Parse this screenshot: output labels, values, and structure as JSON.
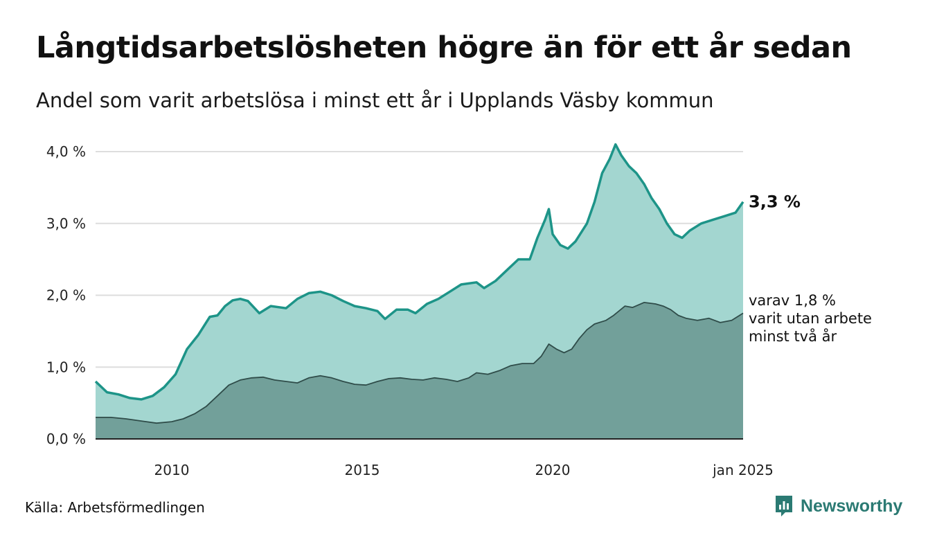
{
  "title": "Långtidsarbetslösheten högre än för ett år sedan",
  "subtitle": "Andel som varit arbetslösa i minst ett år i Upplands Väsby kommun",
  "source": "Källa: Arbetsförmedlingen",
  "brand": {
    "name": "Newsworthy",
    "icon": "newsworthy-logo-icon",
    "color": "#2b7a73"
  },
  "chart_data": {
    "type": "area",
    "x_unit": "year",
    "ylim": [
      0,
      4.0
    ],
    "y_ticks": [
      0.0,
      1.0,
      2.0,
      3.0,
      4.0
    ],
    "y_tick_labels": [
      "0,0 %",
      "1,0 %",
      "2,0 %",
      "3,0 %",
      "4,0 %"
    ],
    "x_ticks": [
      2010,
      2015,
      2020,
      2025.0
    ],
    "x_tick_labels": [
      "2010",
      "2015",
      "2020",
      "jan 2025"
    ],
    "xlim": [
      2008.0,
      2025.0
    ],
    "grid": "horizontal",
    "end_label": "3,3 %",
    "note_lines": [
      "varav 1,8 %",
      "varit utan arbete",
      "minst två år"
    ],
    "colors": {
      "series1_fill": "#a3d6d0",
      "series1_line": "#1d9488",
      "series2_fill": "#72a09a",
      "series2_line": "#2f4c49",
      "grid": "#dddddd",
      "axis": "#222222"
    },
    "series": [
      {
        "name": "",
        "points": [
          [
            2008.0,
            0.8
          ],
          [
            2008.3,
            0.65
          ],
          [
            2008.6,
            0.62
          ],
          [
            2008.9,
            0.57
          ],
          [
            2009.2,
            0.55
          ],
          [
            2009.5,
            0.6
          ],
          [
            2009.8,
            0.72
          ],
          [
            2010.1,
            0.9
          ],
          [
            2010.4,
            1.25
          ],
          [
            2010.7,
            1.45
          ],
          [
            2011.0,
            1.7
          ],
          [
            2011.2,
            1.72
          ],
          [
            2011.4,
            1.85
          ],
          [
            2011.6,
            1.93
          ],
          [
            2011.8,
            1.95
          ],
          [
            2012.0,
            1.92
          ],
          [
            2012.3,
            1.75
          ],
          [
            2012.6,
            1.85
          ],
          [
            2013.0,
            1.82
          ],
          [
            2013.3,
            1.95
          ],
          [
            2013.6,
            2.03
          ],
          [
            2013.9,
            2.05
          ],
          [
            2014.2,
            2.0
          ],
          [
            2014.5,
            1.92
          ],
          [
            2014.8,
            1.85
          ],
          [
            2015.1,
            1.82
          ],
          [
            2015.4,
            1.78
          ],
          [
            2015.6,
            1.67
          ],
          [
            2015.9,
            1.8
          ],
          [
            2016.2,
            1.8
          ],
          [
            2016.4,
            1.75
          ],
          [
            2016.7,
            1.88
          ],
          [
            2017.0,
            1.95
          ],
          [
            2017.3,
            2.05
          ],
          [
            2017.6,
            2.15
          ],
          [
            2018.0,
            2.18
          ],
          [
            2018.2,
            2.1
          ],
          [
            2018.5,
            2.2
          ],
          [
            2018.8,
            2.35
          ],
          [
            2019.1,
            2.5
          ],
          [
            2019.4,
            2.5
          ],
          [
            2019.6,
            2.8
          ],
          [
            2019.8,
            3.05
          ],
          [
            2019.9,
            3.2
          ],
          [
            2020.0,
            2.85
          ],
          [
            2020.2,
            2.7
          ],
          [
            2020.4,
            2.65
          ],
          [
            2020.6,
            2.75
          ],
          [
            2020.9,
            3.0
          ],
          [
            2021.1,
            3.3
          ],
          [
            2021.3,
            3.7
          ],
          [
            2021.5,
            3.9
          ],
          [
            2021.65,
            4.1
          ],
          [
            2021.8,
            3.95
          ],
          [
            2022.0,
            3.8
          ],
          [
            2022.2,
            3.7
          ],
          [
            2022.4,
            3.55
          ],
          [
            2022.6,
            3.35
          ],
          [
            2022.8,
            3.2
          ],
          [
            2023.0,
            3.0
          ],
          [
            2023.2,
            2.85
          ],
          [
            2023.4,
            2.8
          ],
          [
            2023.6,
            2.9
          ],
          [
            2023.9,
            3.0
          ],
          [
            2024.2,
            3.05
          ],
          [
            2024.5,
            3.1
          ],
          [
            2024.8,
            3.15
          ],
          [
            2025.0,
            3.3
          ]
        ]
      },
      {
        "name": "",
        "points": [
          [
            2008.0,
            0.3
          ],
          [
            2008.4,
            0.3
          ],
          [
            2008.8,
            0.28
          ],
          [
            2009.2,
            0.25
          ],
          [
            2009.6,
            0.22
          ],
          [
            2010.0,
            0.24
          ],
          [
            2010.3,
            0.28
          ],
          [
            2010.6,
            0.35
          ],
          [
            2010.9,
            0.45
          ],
          [
            2011.2,
            0.6
          ],
          [
            2011.5,
            0.75
          ],
          [
            2011.8,
            0.82
          ],
          [
            2012.1,
            0.85
          ],
          [
            2012.4,
            0.86
          ],
          [
            2012.7,
            0.82
          ],
          [
            2013.0,
            0.8
          ],
          [
            2013.3,
            0.78
          ],
          [
            2013.6,
            0.85
          ],
          [
            2013.9,
            0.88
          ],
          [
            2014.2,
            0.85
          ],
          [
            2014.5,
            0.8
          ],
          [
            2014.8,
            0.76
          ],
          [
            2015.1,
            0.75
          ],
          [
            2015.4,
            0.8
          ],
          [
            2015.7,
            0.84
          ],
          [
            2016.0,
            0.85
          ],
          [
            2016.3,
            0.83
          ],
          [
            2016.6,
            0.82
          ],
          [
            2016.9,
            0.85
          ],
          [
            2017.2,
            0.83
          ],
          [
            2017.5,
            0.8
          ],
          [
            2017.8,
            0.85
          ],
          [
            2018.0,
            0.92
          ],
          [
            2018.3,
            0.9
          ],
          [
            2018.6,
            0.95
          ],
          [
            2018.9,
            1.02
          ],
          [
            2019.2,
            1.05
          ],
          [
            2019.5,
            1.05
          ],
          [
            2019.7,
            1.15
          ],
          [
            2019.9,
            1.32
          ],
          [
            2020.1,
            1.25
          ],
          [
            2020.3,
            1.2
          ],
          [
            2020.5,
            1.25
          ],
          [
            2020.7,
            1.4
          ],
          [
            2020.9,
            1.52
          ],
          [
            2021.1,
            1.6
          ],
          [
            2021.4,
            1.65
          ],
          [
            2021.6,
            1.72
          ],
          [
            2021.9,
            1.85
          ],
          [
            2022.1,
            1.83
          ],
          [
            2022.4,
            1.9
          ],
          [
            2022.7,
            1.88
          ],
          [
            2022.9,
            1.85
          ],
          [
            2023.1,
            1.8
          ],
          [
            2023.3,
            1.72
          ],
          [
            2023.5,
            1.68
          ],
          [
            2023.8,
            1.65
          ],
          [
            2024.1,
            1.68
          ],
          [
            2024.4,
            1.62
          ],
          [
            2024.7,
            1.65
          ],
          [
            2025.0,
            1.75
          ]
        ]
      }
    ]
  }
}
